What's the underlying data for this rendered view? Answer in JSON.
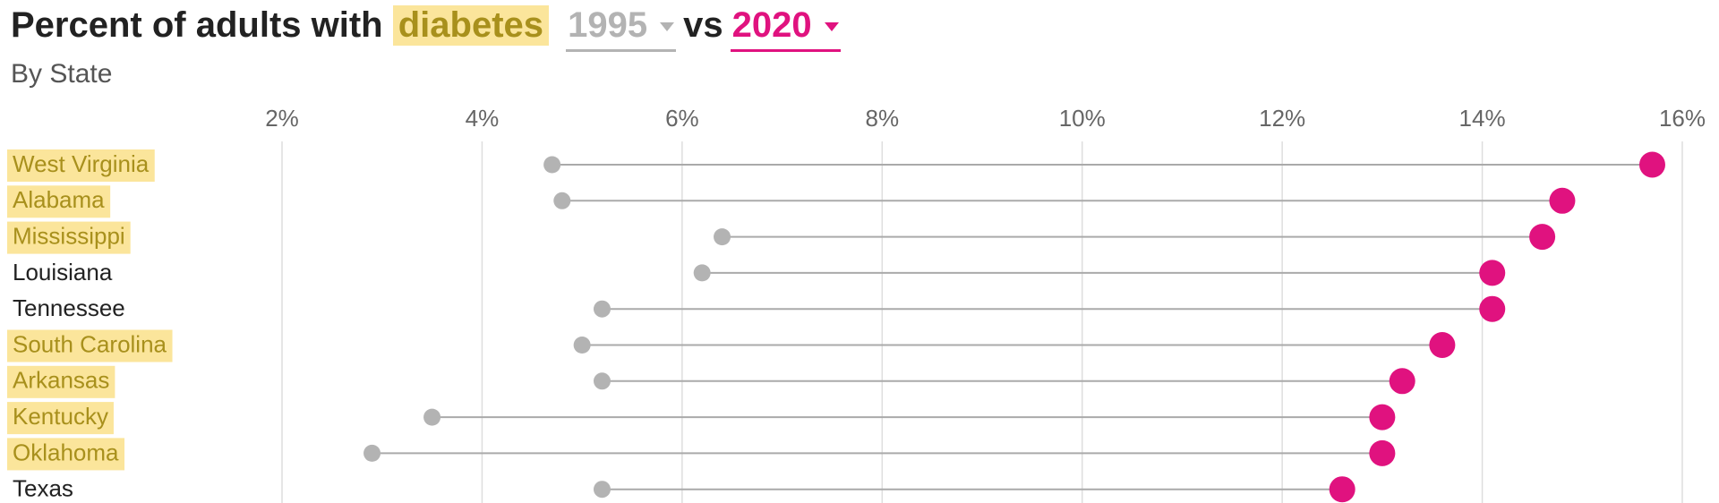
{
  "chart_data": {
    "type": "dumbbell",
    "title": "Percent of adults with",
    "title_highlight": "diabetes",
    "title_connector": "vs",
    "subtitle": "By State",
    "categories": [
      "West Virginia",
      "Alabama",
      "Mississippi",
      "Louisiana",
      "Tennessee",
      "South Carolina",
      "Arkansas",
      "Kentucky",
      "Oklahoma",
      "Texas"
    ],
    "highlighted": [
      true,
      true,
      true,
      false,
      false,
      true,
      true,
      true,
      true,
      false
    ],
    "series": [
      {
        "name": "1995",
        "color": "#b3b3b3",
        "values": [
          4.7,
          4.8,
          6.4,
          6.2,
          5.2,
          5.0,
          5.2,
          3.5,
          2.9,
          5.2
        ]
      },
      {
        "name": "2020",
        "color": "#e0127f",
        "values": [
          15.7,
          14.8,
          14.6,
          14.1,
          14.1,
          13.6,
          13.2,
          13.0,
          13.0,
          12.6
        ]
      }
    ],
    "xlim": [
      2,
      16
    ],
    "xticks": [
      {
        "value": 2,
        "label": "2%"
      },
      {
        "value": 4,
        "label": "4%"
      },
      {
        "value": 6,
        "label": "6%"
      },
      {
        "value": 8,
        "label": "8%"
      },
      {
        "value": 10,
        "label": "10%"
      },
      {
        "value": 12,
        "label": "12%"
      },
      {
        "value": 14,
        "label": "14%"
      },
      {
        "value": 16,
        "label": "16%"
      }
    ],
    "grid": true
  }
}
